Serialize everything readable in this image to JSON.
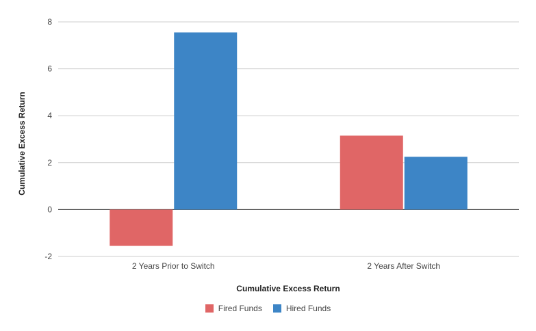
{
  "chart_data": {
    "type": "bar",
    "categories": [
      "2 Years Prior to Switch",
      "2 Years After Switch"
    ],
    "series": [
      {
        "name": "Fired Funds",
        "values": [
          -1.55,
          3.15
        ],
        "color": "#e06666"
      },
      {
        "name": "Hired Funds",
        "values": [
          7.55,
          2.25
        ],
        "color": "#3d85c6"
      }
    ],
    "xlabel": "Cumulative Excess Return",
    "ylabel": "Cumulative Excess Return",
    "ylim": [
      -2,
      8
    ],
    "yticks": [
      -2,
      0,
      2,
      4,
      6,
      8
    ],
    "grid": true,
    "legend_position": "bottom"
  }
}
